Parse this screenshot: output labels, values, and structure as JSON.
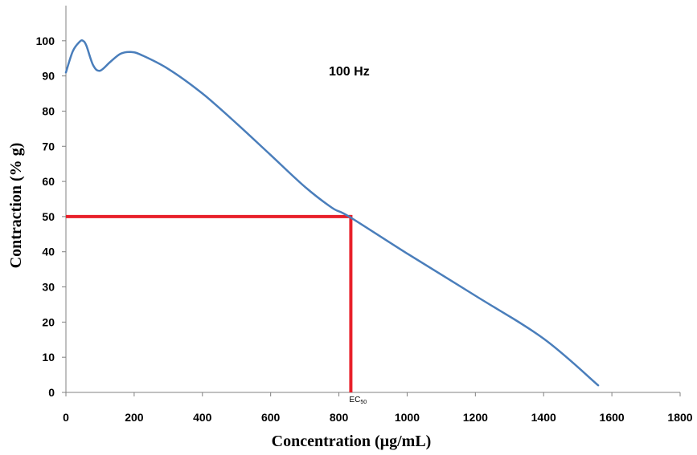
{
  "chart_data": {
    "type": "line",
    "title": "",
    "annotation": "100 Hz",
    "xlabel": "Concentration (µg/mL)",
    "ylabel": "Contraction (% g)",
    "xlim": [
      0,
      1800
    ],
    "ylim": [
      0,
      110
    ],
    "xticks": [
      0,
      200,
      400,
      600,
      800,
      1000,
      1200,
      1400,
      1600,
      1800
    ],
    "yticks": [
      0,
      10,
      20,
      30,
      40,
      50,
      60,
      70,
      80,
      90,
      100
    ],
    "grid": false,
    "legend": "none",
    "series": [
      {
        "color": "#4a7ebb",
        "x": [
          0,
          20,
          40,
          50,
          60,
          80,
          100,
          130,
          160,
          190,
          220,
          300,
          400,
          500,
          600,
          700,
          780,
          830,
          1000,
          1200,
          1400,
          1560
        ],
        "y": [
          91,
          97,
          99.7,
          100,
          98.6,
          93,
          91.5,
          94,
          96.3,
          96.8,
          96,
          92,
          85,
          76.5,
          67.5,
          58.5,
          52.5,
          50,
          39.5,
          27.5,
          15.3,
          2
        ]
      }
    ],
    "reference_lines": {
      "color": "#e8202a",
      "ec50_label": "EC",
      "ec50_subscript": "50",
      "y_level": 50,
      "x_value": 835
    }
  }
}
